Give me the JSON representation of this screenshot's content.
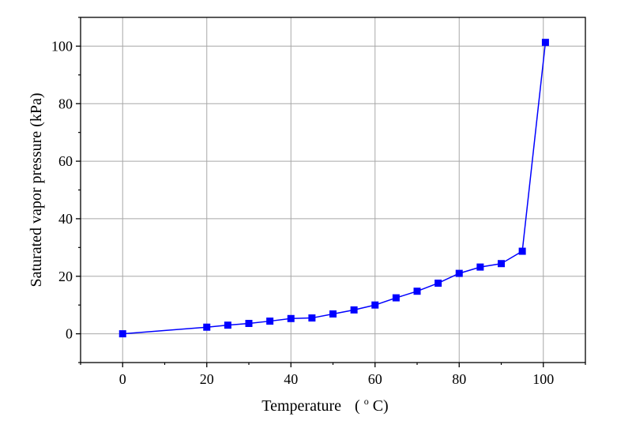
{
  "chart_data": {
    "type": "line",
    "title": "",
    "xlabel": "Temperature",
    "xlabel_unit_prefix": "(",
    "xlabel_unit_sup": "o",
    "xlabel_unit_suffix": "C)",
    "ylabel": "Saturated vapor pressure (kPa)",
    "xlim": [
      -10,
      110
    ],
    "ylim": [
      -10,
      110
    ],
    "xticks": [
      0,
      20,
      40,
      60,
      80,
      100
    ],
    "yticks": [
      0,
      20,
      40,
      60,
      80,
      100
    ],
    "grid": true,
    "legend": "none",
    "series": [
      {
        "marker": "square",
        "color": "#0000ff",
        "x": [
          0,
          20,
          25,
          30,
          35,
          40,
          45,
          50,
          55,
          60,
          65,
          70,
          75,
          80,
          85,
          90,
          95,
          100.5
        ],
        "y": [
          0,
          2.3,
          3.0,
          3.6,
          4.4,
          5.3,
          5.5,
          6.9,
          8.3,
          10.0,
          12.5,
          14.8,
          17.6,
          21.0,
          23.2,
          24.4,
          28.7,
          101.3
        ]
      }
    ]
  }
}
